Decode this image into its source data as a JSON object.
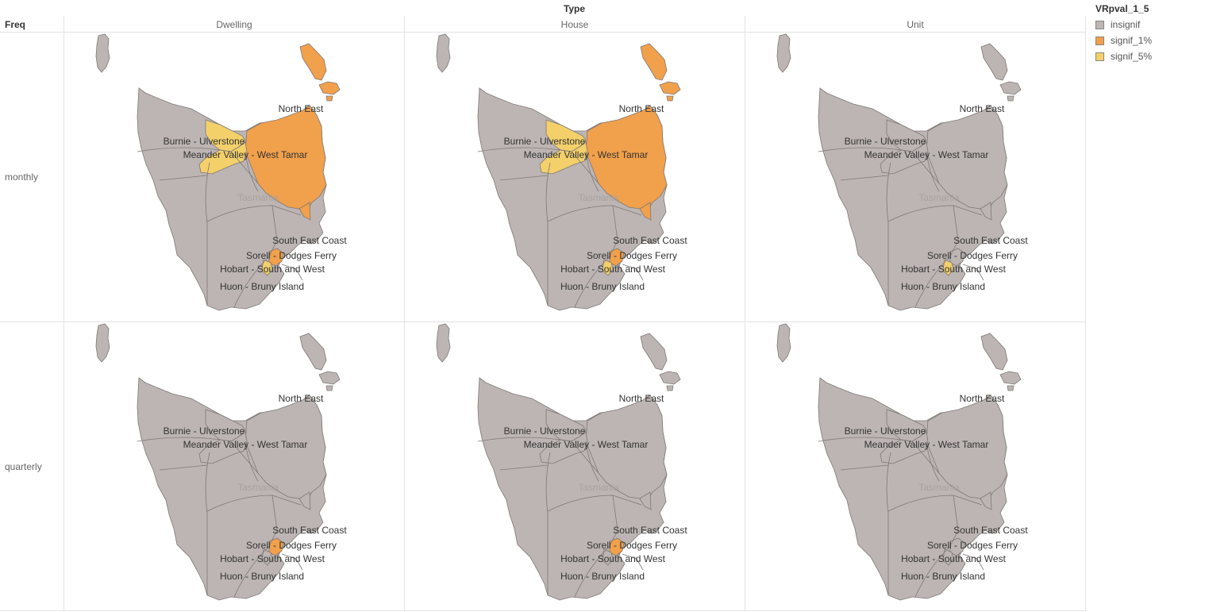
{
  "header": {
    "column_dim": "Type",
    "row_dim": "Freq"
  },
  "columns": [
    "Dwelling",
    "House",
    "Unit"
  ],
  "rows": [
    "monthly",
    "quarterly"
  ],
  "legend": {
    "title": "VRpval_1_5",
    "items": [
      {
        "key": "insignif",
        "label": "insignif",
        "color": "#bcb5b3"
      },
      {
        "key": "signif_1",
        "label": "signif_1%",
        "color": "#f1a04b"
      },
      {
        "key": "signif_5",
        "label": "signif_5%",
        "color": "#f3d06a"
      }
    ]
  },
  "map_watermark": "Tasmania",
  "region_labels": [
    "North East",
    "Burnie - Ulverstone",
    "Meander Valley - West Tamar",
    "South East Coast",
    "Sorell - Dodges Ferry",
    "Hobart - South and West",
    "Huon - Bruny Island"
  ],
  "panels": [
    {
      "row": "monthly",
      "column": "Dwelling",
      "regions": {
        "north_east": "signif_1",
        "launceston_area": "signif_1",
        "flinders_island": "signif_1",
        "burnie_ulverstone": "signif_5",
        "meander_valley": "signif_5",
        "sorell_dodges_ferry": "signif_1",
        "hobart_south_west": "signif_5"
      }
    },
    {
      "row": "monthly",
      "column": "House",
      "regions": {
        "north_east": "signif_1",
        "launceston_area": "signif_1",
        "flinders_island": "signif_1",
        "burnie_ulverstone": "signif_5",
        "meander_valley": "signif_5",
        "sorell_dodges_ferry": "signif_1",
        "hobart_south_west": "signif_5"
      }
    },
    {
      "row": "monthly",
      "column": "Unit",
      "regions": {
        "hobart_south_west": "signif_5"
      }
    },
    {
      "row": "quarterly",
      "column": "Dwelling",
      "regions": {
        "sorell_dodges_ferry": "signif_1"
      }
    },
    {
      "row": "quarterly",
      "column": "House",
      "regions": {
        "sorell_dodges_ferry": "signif_1"
      }
    },
    {
      "row": "quarterly",
      "column": "Unit",
      "regions": {}
    }
  ]
}
